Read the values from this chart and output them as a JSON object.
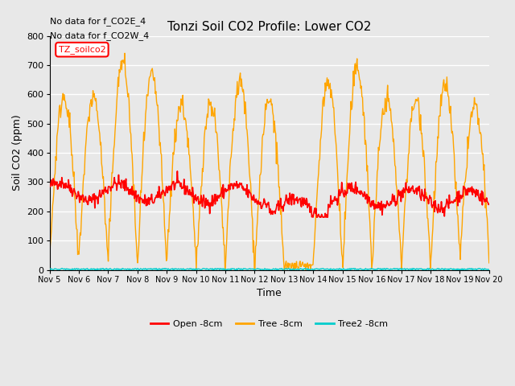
{
  "title": "Tonzi Soil CO2 Profile: Lower CO2",
  "xlabel": "Time",
  "ylabel": "Soil CO2 (ppm)",
  "annotations": [
    "No data for f_CO2E_4",
    "No data for f_CO2W_4"
  ],
  "station_label": "TZ_soilco2",
  "ylim": [
    0,
    800
  ],
  "yticks": [
    0,
    100,
    200,
    300,
    400,
    500,
    600,
    700,
    800
  ],
  "xtick_labels": [
    "Nov 5",
    "Nov 6",
    "Nov 7",
    "Nov 8",
    "Nov 9",
    "Nov 10",
    "Nov 11",
    "Nov 12",
    "Nov 13",
    "Nov 14",
    "Nov 15",
    "Nov 16",
    "Nov 17",
    "Nov 18",
    "Nov 19",
    "Nov 20"
  ],
  "legend_labels": [
    "Open -8cm",
    "Tree -8cm",
    "Tree2 -8cm"
  ],
  "legend_colors": [
    "#ff0000",
    "#ffa500",
    "#00cccc"
  ],
  "bg_color": "#e8e8e8",
  "grid_color": "#ffffff",
  "num_days": 15,
  "points_per_day": 48
}
